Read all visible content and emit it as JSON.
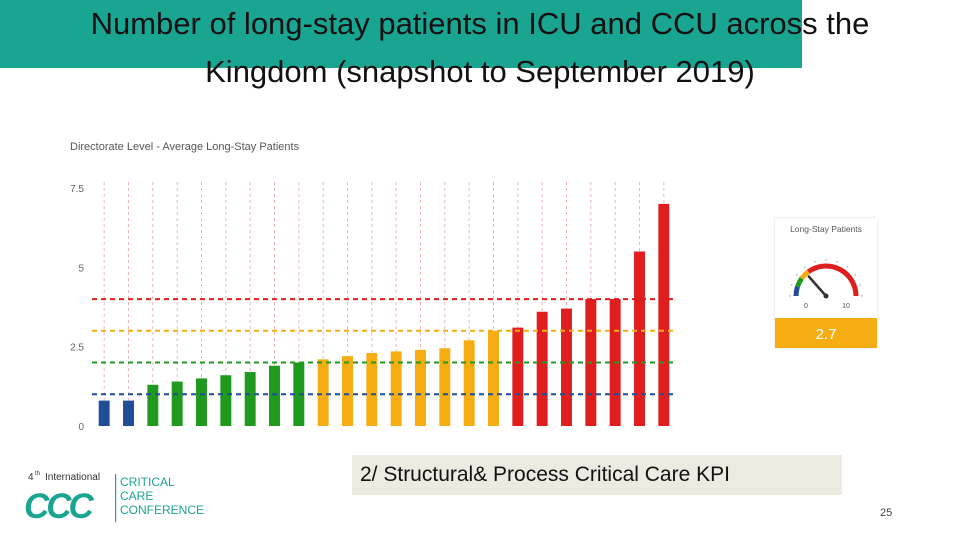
{
  "slide": {
    "title": "Number of long-stay patients in ICU and CCU across the Kingdom (snapshot to September 2019)",
    "kpi_label": "2/ Structural& Process Critical Care KPI",
    "page_number": "25"
  },
  "logo": {
    "edition_number": "4",
    "edition_suffix": "th",
    "edition_word": "International",
    "mark_text": "CCC",
    "lines": [
      "CRITICAL",
      "CARE",
      "CONFERENCE"
    ]
  },
  "chart_data": {
    "type": "bar",
    "title": "Directorate Level - Average Long-Stay Patients",
    "xlabel": "",
    "ylabel": "",
    "ylim": [
      0,
      7.5
    ],
    "yticks": [
      0,
      2.5,
      5,
      7.5
    ],
    "ytick_labels": [
      "0",
      "2.5",
      "5",
      "7.5"
    ],
    "grid": "vertical dashed red guides",
    "values": [
      0.8,
      0.8,
      1.3,
      1.4,
      1.5,
      1.6,
      1.7,
      1.9,
      2.0,
      2.1,
      2.2,
      2.3,
      2.35,
      2.4,
      2.45,
      2.7,
      3.0,
      3.1,
      3.6,
      3.7,
      4.0,
      4.0,
      5.5,
      7.0
    ],
    "thresholds": [
      {
        "value": 1.0,
        "color": "#1f4e96"
      },
      {
        "value": 2.0,
        "color": "#1f9a1f"
      },
      {
        "value": 3.0,
        "color": "#f6ad12"
      },
      {
        "value": 4.0,
        "color": "#e01e1e"
      }
    ],
    "colors": {
      "blue": "#1f4e96",
      "green": "#1f9a1f",
      "orange": "#f6ad12",
      "red": "#e01e1e"
    }
  },
  "gauge": {
    "title": "Long-Stay Patients",
    "min_label": "0",
    "max_label": "10",
    "min": 0,
    "max": 10,
    "value": 2.7,
    "value_label": "2.7",
    "value_color": "#f6ad12"
  }
}
